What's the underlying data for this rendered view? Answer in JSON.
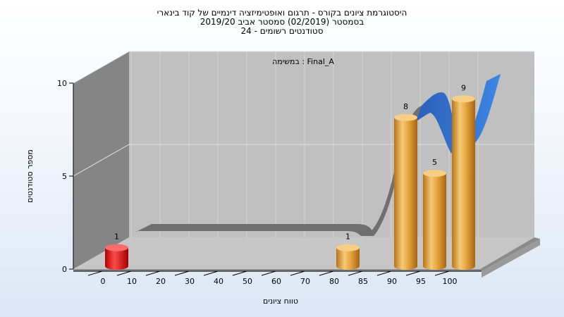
{
  "chart_data": {
    "type": "bar",
    "title_lines": [
      "היסטוגרמת ציונים בקורס - תרגום ואופטימיזציה דינמיים של קוד בינארי",
      "בסמסטר  (02/2019)  סמסטר אביב 2019/20",
      "סטודנטים רשומים - 24"
    ],
    "annotation": "במשימה : Final_A",
    "xlabel": "טווח ציונים",
    "ylabel": "מספר סטודנטים",
    "categories": [
      "0",
      "10",
      "20",
      "30",
      "40",
      "50",
      "60",
      "70",
      "80",
      "85",
      "90",
      "95",
      "100"
    ],
    "values": [
      1,
      0,
      0,
      0,
      0,
      0,
      0,
      0,
      1,
      0,
      8,
      5,
      9
    ],
    "yticks": [
      0,
      5,
      10
    ],
    "ylim": [
      0,
      10
    ],
    "grid": true,
    "colors": {
      "bar_low": "#e01010",
      "bar": "#e8a640",
      "wall_left": "#858585",
      "wall_back": "#c0c0c0",
      "floor": "#c6c6c6",
      "trend_grey": "#6e6e6e",
      "trend_blue": "#2f6fd0"
    }
  }
}
